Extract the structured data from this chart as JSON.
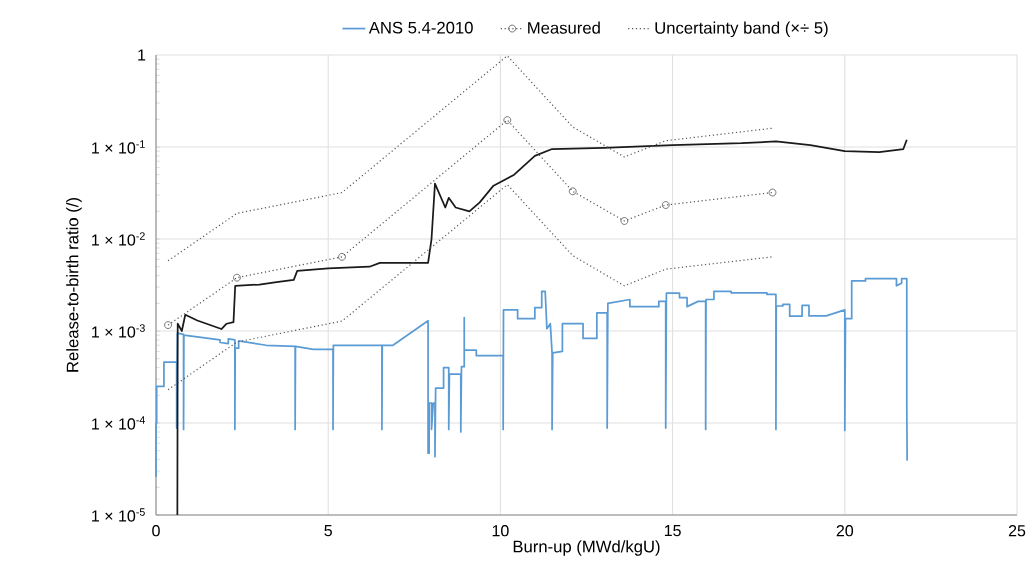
{
  "chart_data": {
    "type": "line",
    "xlabel": "Burn-up (MWd/kgU)",
    "ylabel": "Release-to-birth ratio (/)",
    "xlim": [
      0,
      25
    ],
    "xticks": [
      0,
      5,
      10,
      15,
      20,
      25
    ],
    "ylim": [
      1e-05,
      1
    ],
    "yticks": [
      {
        "value": 1e-05,
        "label": "1 × 10$^{-5}$"
      },
      {
        "value": 0.0001,
        "label": "1 × 10$^{-4}$"
      },
      {
        "value": 0.001,
        "label": "1 × 10$^{-3}$"
      },
      {
        "value": 0.01,
        "label": "1 × 10$^{-2}$"
      },
      {
        "value": 0.1,
        "label": "1 × 10$^{-1}$"
      },
      1
    ],
    "log": "y",
    "grid": true,
    "legend": "top",
    "series": [
      {
        "color": "#5b9bd5",
        "name": "ANS 5.4-2010",
        "marker": "none",
        "line_style": "solid",
        "x": [
          0,
          0,
          0.02,
          0.02,
          0.23,
          0.23,
          0.6,
          0.6,
          0.62,
          0.8,
          0.8,
          0.81,
          1.86,
          1.86,
          2.1,
          2.1,
          2.29,
          2.29,
          2.3,
          2.4,
          2.4,
          3.2,
          4.04,
          4.04,
          4.05,
          4.57,
          5.14,
          5.14,
          5.15,
          6.56,
          6.56,
          6.57,
          6.88,
          7.9,
          7.9,
          7.93,
          7.93,
          8.0,
          8.0,
          8.05,
          8.1,
          8.1,
          8.12,
          8.35,
          8.35,
          8.5,
          8.5,
          8.52,
          8.85,
          8.85,
          8.87,
          8.95,
          8.95,
          8.95,
          9.3,
          9.3,
          10.08,
          10.08,
          10.09,
          10.5,
          10.5,
          11.0,
          11.0,
          11.2,
          11.2,
          11.3,
          11.35,
          11.45,
          11.5,
          11.5,
          11.52,
          11.8,
          11.8,
          12.4,
          12.4,
          12.8,
          12.8,
          13.1,
          13.1,
          13.12,
          13.76,
          13.76,
          14.6,
          14.6,
          14.8,
          14.8,
          14.82,
          15.2,
          15.2,
          15.42,
          15.42,
          15.74,
          15.96,
          15.96,
          15.97,
          16.2,
          16.2,
          16.7,
          16.7,
          17.74,
          17.74,
          18.0,
          18.0,
          18.01,
          18.2,
          18.2,
          18.4,
          18.4,
          18.76,
          18.76,
          18.96,
          18.96,
          19.46,
          20.0,
          20.0,
          20.02,
          20.2,
          20.2,
          20.6,
          20.6,
          21.5,
          21.5,
          21.65,
          21.65,
          21.8,
          21.8,
          21.81
        ],
        "values": [
          2.6e-05,
          0.0001,
          0.0001,
          0.00025,
          0.00025,
          0.00046,
          0.00046,
          8.8e-05,
          0.00095,
          0.00092,
          8.5e-05,
          0.0009,
          0.0008,
          0.00075,
          0.00073,
          0.00082,
          0.0008,
          8.5e-05,
          0.00065,
          0.00065,
          0.00078,
          0.0007,
          0.00068,
          8.5e-05,
          0.00068,
          0.00063,
          0.00063,
          8.5e-05,
          0.0007,
          0.0007,
          8.5e-05,
          0.0007,
          0.0007,
          0.00129,
          4.7e-05,
          4.7e-05,
          0.000165,
          0.000165,
          8.5e-05,
          0.000165,
          0.000165,
          4.3e-05,
          0.00024,
          0.00024,
          0.0004,
          0.0004,
          8.5e-05,
          0.00034,
          0.00034,
          8e-05,
          0.00041,
          0.00041,
          0.0014,
          0.00062,
          0.00062,
          0.00054,
          0.00054,
          8.5e-05,
          0.0017,
          0.0017,
          0.00136,
          0.00136,
          0.0018,
          0.0018,
          0.0027,
          0.0027,
          0.00106,
          0.0012,
          0.00058,
          8.5e-05,
          0.00058,
          0.0006,
          0.0012,
          0.0012,
          0.00083,
          0.00083,
          0.00157,
          0.00157,
          8.8e-05,
          0.002,
          0.0022,
          0.00184,
          0.00184,
          0.0021,
          0.0021,
          8.8e-05,
          0.00258,
          0.00258,
          0.0023,
          0.0023,
          0.00184,
          0.0021,
          0.0021,
          8.5e-05,
          0.0022,
          0.0022,
          0.0027,
          0.0027,
          0.0026,
          0.0026,
          0.0025,
          0.0025,
          8.5e-05,
          0.00187,
          0.00187,
          0.00195,
          0.00195,
          0.00145,
          0.00145,
          0.0019,
          0.0019,
          0.00146,
          0.00146,
          0.0017,
          8.3e-05,
          0.00136,
          0.00136,
          0.0035,
          0.0035,
          0.0037,
          0.0037,
          0.0031,
          0.0033,
          0.0037,
          0.0037,
          0.00015,
          3.9e-05
        ]
      },
      {
        "color": "#1a1a1a",
        "marker": "none",
        "line_style": "solid",
        "x": [
          0.62,
          0.63,
          0.75,
          0.85,
          1.2,
          1.9,
          2.05,
          2.25,
          2.3,
          3.0,
          3.5,
          4.0,
          4.1,
          5.0,
          6.2,
          6.5,
          7.9,
          8.0,
          8.1,
          8.4,
          8.5,
          8.7,
          9.1,
          9.4,
          9.8,
          10.4,
          11,
          11.5,
          13,
          15,
          17,
          18,
          19,
          20,
          21,
          21.7,
          21.8
        ],
        "values": [
          1e-05,
          0.0012,
          0.001,
          0.0015,
          0.0013,
          0.00105,
          0.0012,
          0.00125,
          0.0031,
          0.0032,
          0.0034,
          0.0036,
          0.0045,
          0.0048,
          0.005,
          0.0055,
          0.0055,
          0.01,
          0.04,
          0.022,
          0.028,
          0.022,
          0.02,
          0.025,
          0.038,
          0.05,
          0.08,
          0.095,
          0.098,
          0.105,
          0.11,
          0.115,
          0.105,
          0.09,
          0.088,
          0.095,
          0.12
        ]
      },
      {
        "color": "#555555",
        "name": "Measured",
        "marker": "circle",
        "line_style": "dotted",
        "x": [
          0.35,
          2.35,
          5.4,
          10.2,
          12.1,
          13.6,
          14.8,
          17.9
        ],
        "values": [
          0.00116,
          0.0038,
          0.0064,
          0.196,
          0.033,
          0.0157,
          0.0234,
          0.032
        ]
      },
      {
        "color": "#555555",
        "name": "Uncertainty band (×÷ 5)",
        "marker": "none",
        "line_style": "dotted",
        "x": [
          0.35,
          2.35,
          5.4,
          10.2,
          12.1,
          13.6,
          14.8,
          17.9
        ],
        "values": [
          0.0058,
          0.019,
          0.032,
          0.98,
          0.165,
          0.078,
          0.117,
          0.16
        ]
      },
      {
        "color": "#555555",
        "marker": "none",
        "line_style": "dotted",
        "x": [
          0.35,
          2.35,
          5.4,
          10.2,
          12.1,
          13.6,
          14.8,
          17.9
        ],
        "values": [
          0.00023,
          0.00076,
          0.00128,
          0.039,
          0.0066,
          0.0031,
          0.0047,
          0.0064
        ]
      }
    ]
  }
}
